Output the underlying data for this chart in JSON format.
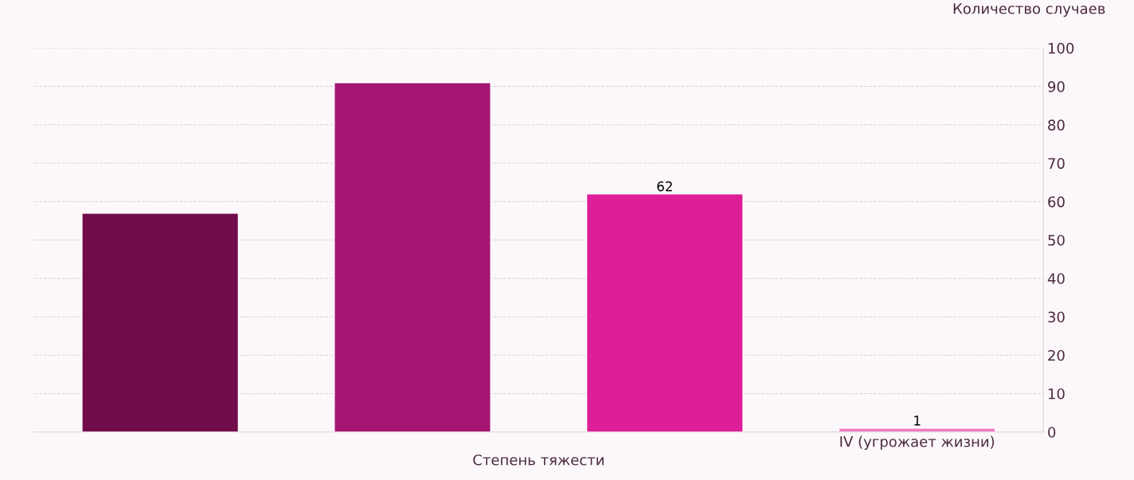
{
  "chart_data": {
    "type": "bar",
    "xlabel": "Степень тяжести",
    "ylabel": "Количество случаев",
    "categories": [
      null,
      null,
      null,
      "IV (угрожает жизни)"
    ],
    "values": [
      57,
      91,
      62,
      1
    ],
    "colors": [
      "#720b4a",
      "#a41671",
      "#de1e98",
      "#f27cc6"
    ],
    "value_labels": [
      null,
      null,
      "62",
      "1"
    ],
    "ylim": [
      0,
      100
    ],
    "yticks": [
      0,
      10,
      20,
      30,
      40,
      50,
      60,
      70,
      80,
      90,
      100
    ],
    "grid": "y"
  }
}
